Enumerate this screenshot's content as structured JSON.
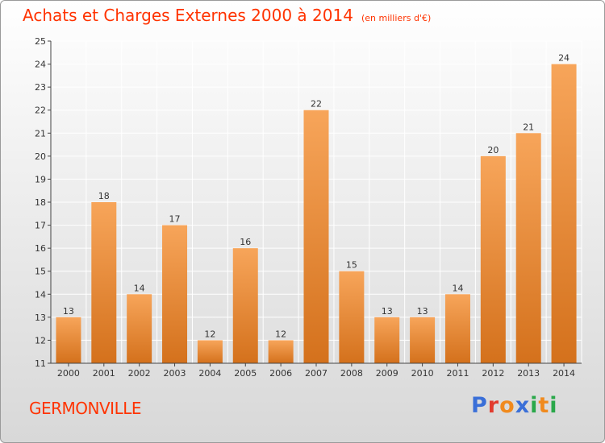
{
  "header": {
    "title": "Achats et Charges Externes 2000 à 2014",
    "subtitle": "(en milliers d'€)"
  },
  "footer": {
    "commune": "GERMONVILLE",
    "logo": "Proxiti",
    "logo_colors": [
      "#3a6fd8",
      "#e23b2e",
      "#f08a1e",
      "#3a6fd8",
      "#2aa84a",
      "#f08a1e",
      "#2aa84a"
    ]
  },
  "colors": {
    "title": "#ff3300",
    "bar_light": "#f7a55a",
    "bar_dark": "#d4711c",
    "grid": "#ffffff",
    "axis": "#444444"
  },
  "chart_data": {
    "type": "bar",
    "categories": [
      "2000",
      "2001",
      "2002",
      "2003",
      "2004",
      "2005",
      "2006",
      "2007",
      "2008",
      "2009",
      "2010",
      "2011",
      "2012",
      "2013",
      "2014"
    ],
    "values": [
      13,
      18,
      14,
      17,
      12,
      16,
      12,
      22,
      15,
      13,
      13,
      14,
      20,
      21,
      24
    ],
    "ylim": [
      11,
      25
    ],
    "yticks": [
      11,
      12,
      13,
      14,
      15,
      16,
      17,
      18,
      19,
      20,
      21,
      22,
      23,
      24,
      25
    ],
    "grid": true,
    "xlabel": "",
    "ylabel": ""
  }
}
